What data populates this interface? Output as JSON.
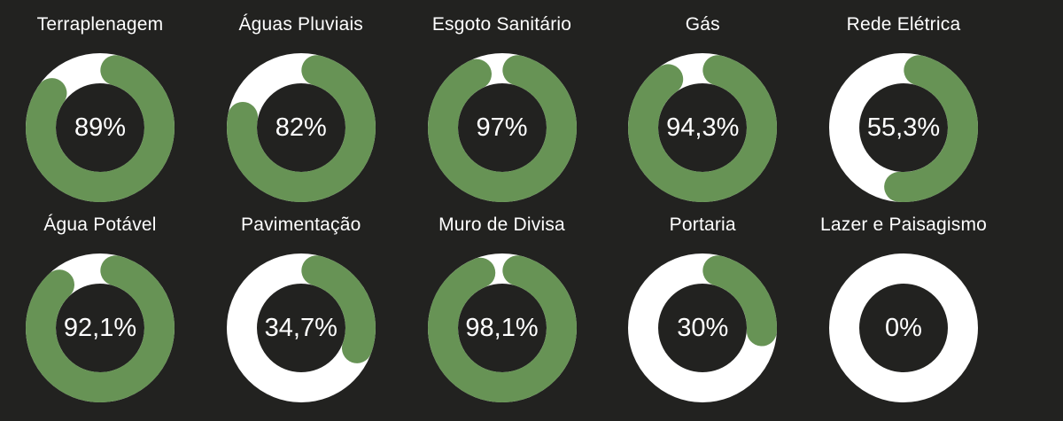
{
  "colors": {
    "background": "#222220",
    "progress": "#679355",
    "track": "#ffffff",
    "text": "#ffffff"
  },
  "chart_data": {
    "type": "donut",
    "items": [
      {
        "label": "Terraplenagem",
        "value": 89,
        "display": "89%"
      },
      {
        "label": "Águas Pluviais",
        "value": 82,
        "display": "82%"
      },
      {
        "label": "Esgoto Sanitário",
        "value": 97,
        "display": "97%"
      },
      {
        "label": "Gás",
        "value": 94.3,
        "display": "94,3%"
      },
      {
        "label": "Rede Elétrica",
        "value": 55.3,
        "display": "55,3%"
      },
      {
        "label": "Água Potável",
        "value": 92.1,
        "display": "92,1%"
      },
      {
        "label": "Pavimentação",
        "value": 34.7,
        "display": "34,7%"
      },
      {
        "label": "Muro de Divisa",
        "value": 98.1,
        "display": "98,1%"
      },
      {
        "label": "Portaria",
        "value": 30,
        "display": "30%"
      },
      {
        "label": "Lazer e Paisagismo",
        "value": 0,
        "display": "0%"
      }
    ]
  }
}
